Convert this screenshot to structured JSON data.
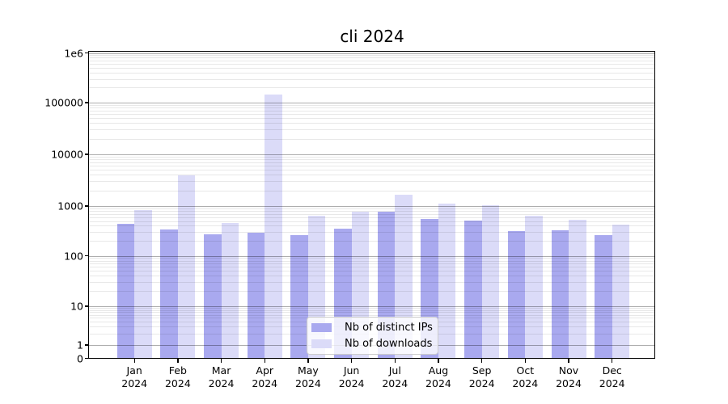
{
  "title": "cli 2024",
  "colors": {
    "ips": "#a9a9ef",
    "downloads": "#dbdbf8",
    "axis": "#000000",
    "grid_major": "#b0b0b0",
    "grid_minor": "#e8e8e8",
    "legend_border": "#cccccc",
    "text": "#000000"
  },
  "y_axis": {
    "tick_labels": [
      "0",
      "1",
      "10",
      "100",
      "1000",
      "10000",
      "100000",
      "1e6"
    ]
  },
  "legend": {
    "items": [
      {
        "label": "Nb of distinct IPs",
        "color_key": "ips"
      },
      {
        "label": "Nb of downloads",
        "color_key": "downloads"
      }
    ]
  },
  "chart_data": {
    "type": "bar",
    "title": "cli 2024",
    "categories": [
      "Jan 2024",
      "Feb 2024",
      "Mar 2024",
      "Apr 2024",
      "May 2024",
      "Jun 2024",
      "Jul 2024",
      "Aug 2024",
      "Sep 2024",
      "Oct 2024",
      "Nov 2024",
      "Dec 2024"
    ],
    "series": [
      {
        "name": "Nb of distinct IPs",
        "values": [
          440,
          340,
          265,
          290,
          260,
          355,
          770,
          550,
          505,
          315,
          320,
          255
        ]
      },
      {
        "name": "Nb of downloads",
        "values": [
          820,
          3900,
          460,
          145000,
          640,
          780,
          1660,
          1100,
          1030,
          650,
          525,
          430
        ]
      }
    ],
    "xlabel": "",
    "ylabel": "",
    "yscale": "symlog",
    "ylim": [
      0,
      1000000
    ],
    "y_ticks": [
      0,
      1,
      10,
      100,
      1000,
      10000,
      100000,
      1000000
    ],
    "grid": true,
    "grid_minor": true,
    "legend_position": "lower center"
  }
}
